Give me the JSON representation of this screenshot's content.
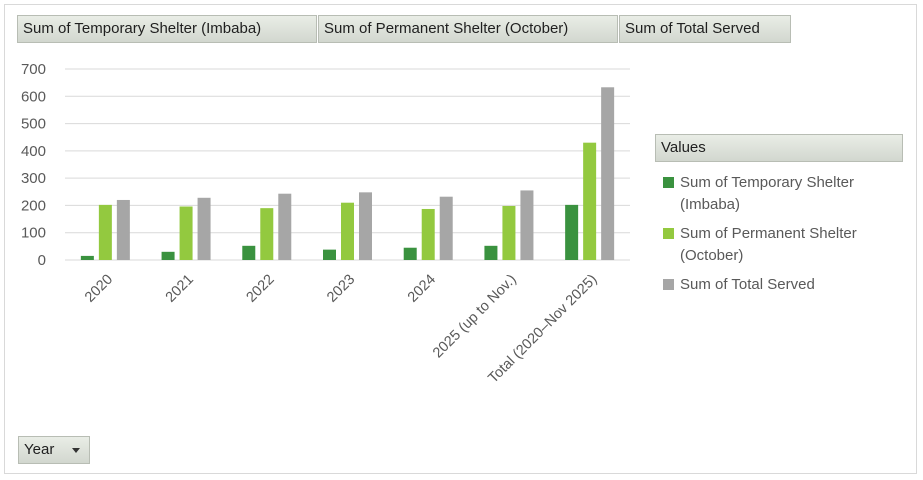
{
  "field_buttons": {
    "temporary": "Sum of Temporary Shelter (Imbaba)",
    "permanent": "Sum of Permanent Shelter (October)",
    "total": "Sum of Total Served"
  },
  "legend": {
    "header": "Values",
    "items": [
      {
        "label": "Sum of Temporary Shelter (Imbaba)",
        "color": "#3a923f"
      },
      {
        "label": "Sum of Permanent Shelter (October)",
        "color": "#93c93f"
      },
      {
        "label": "Sum of Total Served",
        "color": "#a6a6a6"
      }
    ]
  },
  "axis_button": {
    "label": "Year",
    "icon": "dropdown-caret-icon"
  },
  "chart_data": {
    "type": "bar",
    "categories": [
      "2020",
      "2021",
      "2022",
      "2023",
      "2024",
      "2025 (up to Nov.)",
      "Total (2020–Nov 2025)"
    ],
    "series": [
      {
        "name": "Sum of Temporary Shelter (Imbaba)",
        "color": "#3a923f",
        "values": [
          15,
          30,
          52,
          38,
          45,
          52,
          202
        ]
      },
      {
        "name": "Sum of Permanent Shelter (October)",
        "color": "#93c93f",
        "values": [
          202,
          196,
          190,
          210,
          187,
          198,
          430
        ]
      },
      {
        "name": "Sum of Total Served",
        "color": "#a6a6a6",
        "values": [
          220,
          228,
          243,
          248,
          232,
          255,
          633
        ]
      }
    ],
    "ylim": [
      0,
      700
    ],
    "yticks": [
      0,
      100,
      200,
      300,
      400,
      500,
      600,
      700
    ],
    "grid": true,
    "legend_position": "right"
  }
}
